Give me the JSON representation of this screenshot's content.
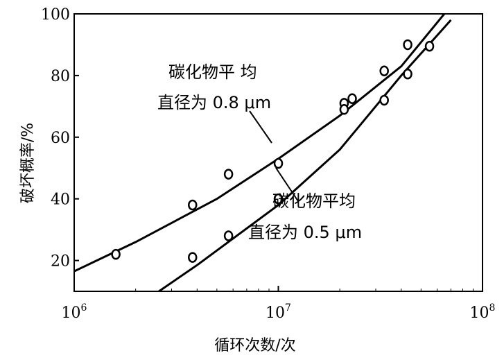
{
  "chart_data": {
    "type": "scatter",
    "xlabel": "循环次数/次",
    "ylabel": "破坏概率/%",
    "xscale": "log",
    "xlim": [
      1000000,
      100000000
    ],
    "ylim": [
      10,
      100
    ],
    "x_ticks": [
      {
        "value": 1000000,
        "base": "10",
        "exp": "6"
      },
      {
        "value": 10000000,
        "base": "10",
        "exp": "7"
      },
      {
        "value": 100000000,
        "base": "10",
        "exp": "8"
      }
    ],
    "y_ticks": [
      20,
      40,
      60,
      80,
      100
    ],
    "grid": false,
    "series": [
      {
        "label_lines": [
          "碳化物平 均",
          "直径为 0.8 μm"
        ],
        "points": [
          {
            "x": 1600000,
            "y": 22
          },
          {
            "x": 3800000,
            "y": 38
          },
          {
            "x": 5700000,
            "y": 48
          },
          {
            "x": 10000000,
            "y": 51.5
          },
          {
            "x": 21000000,
            "y": 71
          },
          {
            "x": 23000000,
            "y": 72.5
          },
          {
            "x": 33000000,
            "y": 81.5
          },
          {
            "x": 43000000,
            "y": 90
          }
        ],
        "fit_line": [
          {
            "x": 1000000,
            "y": 16.5
          },
          {
            "x": 2000000,
            "y": 26
          },
          {
            "x": 5000000,
            "y": 40
          },
          {
            "x": 10000000,
            "y": 53
          },
          {
            "x": 20000000,
            "y": 67
          },
          {
            "x": 40000000,
            "y": 83
          },
          {
            "x": 65000000,
            "y": 100
          }
        ]
      },
      {
        "label_lines": [
          "碳化物平均",
          "直径为 0.5 μm"
        ],
        "points": [
          {
            "x": 3800000,
            "y": 21
          },
          {
            "x": 5700000,
            "y": 28
          },
          {
            "x": 10000000,
            "y": 40
          },
          {
            "x": 21000000,
            "y": 69
          },
          {
            "x": 33000000,
            "y": 72
          },
          {
            "x": 43000000,
            "y": 80.5
          },
          {
            "x": 55000000,
            "y": 89.5
          }
        ],
        "fit_line": [
          {
            "x": 2600000,
            "y": 10
          },
          {
            "x": 4000000,
            "y": 18.5
          },
          {
            "x": 10000000,
            "y": 38
          },
          {
            "x": 20000000,
            "y": 56
          },
          {
            "x": 40000000,
            "y": 80
          },
          {
            "x": 70000000,
            "y": 98
          }
        ]
      }
    ]
  }
}
